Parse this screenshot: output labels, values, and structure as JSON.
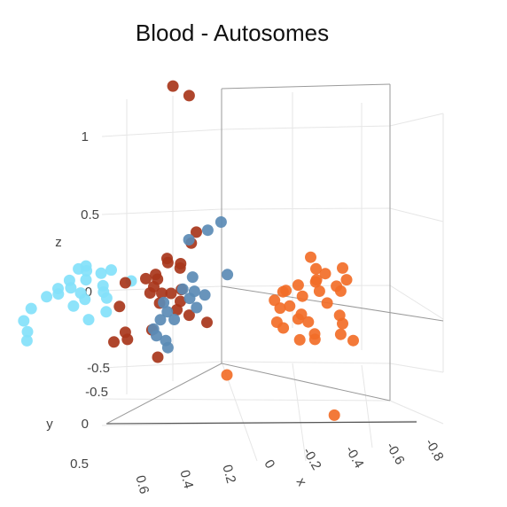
{
  "chart_data": {
    "type": "scatter",
    "title": "Blood - Autosomes",
    "projection": "3d",
    "axes": {
      "x": {
        "label": "x",
        "ticks": [
          "0",
          "-0.2",
          "-0.4",
          "-0.6",
          "-0.8"
        ]
      },
      "y": {
        "label": "y",
        "ticks": [
          "0.6",
          "0.4",
          "0.2"
        ],
        "ticks_side": [
          "0",
          "0.5"
        ]
      },
      "z": {
        "label": "z",
        "ticks": [
          "1",
          "0.5",
          "0",
          "-0.5",
          "-0.5"
        ]
      }
    },
    "grid": true,
    "legend": "none",
    "series": [
      {
        "color": "#83e1fa",
        "points": [
          [
            0.57,
            0.05,
            0.02
          ],
          [
            0.55,
            0.03,
            0.04
          ],
          [
            0.52,
            0.08,
            0.02
          ],
          [
            0.58,
            0.1,
            -0.05
          ],
          [
            0.5,
            0.12,
            -0.03
          ],
          [
            0.47,
            0.06,
            0.01
          ],
          [
            0.6,
            0.15,
            -0.1
          ],
          [
            0.53,
            0.18,
            -0.08
          ],
          [
            0.45,
            0.02,
            0.03
          ],
          [
            0.44,
            0.1,
            -0.06
          ],
          [
            0.62,
            0.2,
            -0.15
          ],
          [
            0.56,
            0.22,
            -0.12
          ],
          [
            0.48,
            0.25,
            -0.18
          ],
          [
            0.64,
            0.28,
            -0.22
          ],
          [
            0.41,
            0.15,
            -0.09
          ],
          [
            0.38,
            0.18,
            -0.12
          ],
          [
            0.35,
            0.05,
            -0.02
          ],
          [
            0.66,
            0.3,
            -0.3
          ],
          [
            0.6,
            0.38,
            -0.35
          ],
          [
            0.58,
            0.42,
            -0.4
          ],
          [
            0.4,
            0.28,
            -0.25
          ],
          [
            0.36,
            0.22,
            -0.2
          ],
          [
            0.5,
            0.16,
            -0.11
          ],
          [
            0.46,
            0.2,
            -0.14
          ]
        ]
      },
      {
        "color": "#a8361b",
        "points": [
          [
            0.08,
            0.1,
            1.22
          ],
          [
            0.12,
            0.15,
            1.28
          ],
          [
            0.05,
            0.1,
            0.35
          ],
          [
            0.06,
            0.12,
            0.28
          ],
          [
            0.2,
            0.05,
            0.15
          ],
          [
            0.18,
            0.08,
            0.13
          ],
          [
            0.16,
            0.02,
            0.12
          ],
          [
            0.14,
            0.06,
            0.1
          ],
          [
            0.22,
            0.1,
            0.05
          ],
          [
            0.25,
            0.12,
            0.02
          ],
          [
            0.2,
            0.15,
            -0.02
          ],
          [
            0.15,
            0.18,
            -0.05
          ],
          [
            0.1,
            0.2,
            -0.04
          ],
          [
            0.28,
            0.22,
            0.0
          ],
          [
            0.12,
            0.25,
            -0.1
          ],
          [
            0.05,
            0.22,
            -0.08
          ],
          [
            0.02,
            0.3,
            -0.12
          ],
          [
            -0.02,
            0.28,
            -0.15
          ],
          [
            0.26,
            0.3,
            -0.14
          ],
          [
            0.18,
            0.4,
            -0.28
          ],
          [
            0.2,
            0.45,
            -0.34
          ],
          [
            0.16,
            0.42,
            -0.32
          ],
          [
            0.08,
            0.38,
            -0.25
          ],
          [
            0.0,
            0.48,
            -0.4
          ],
          [
            -0.05,
            0.2,
            -0.2
          ],
          [
            0.24,
            0.05,
            0.01
          ],
          [
            0.21,
            0.16,
            -0.06
          ],
          [
            0.09,
            0.14,
            -0.02
          ]
        ]
      },
      {
        "color": "#5b8bb5",
        "points": [
          [
            0.03,
            0.05,
            0.36
          ],
          [
            -0.02,
            0.04,
            0.42
          ],
          [
            0.07,
            0.12,
            0.3
          ],
          [
            -0.08,
            0.1,
            0.1
          ],
          [
            0.01,
            0.2,
            0.08
          ],
          [
            0.04,
            0.22,
            0.0
          ],
          [
            -0.03,
            0.18,
            -0.03
          ],
          [
            0.0,
            0.24,
            -0.05
          ],
          [
            -0.04,
            0.26,
            -0.1
          ],
          [
            0.06,
            0.3,
            -0.14
          ],
          [
            0.02,
            0.32,
            -0.18
          ],
          [
            0.1,
            0.28,
            -0.2
          ],
          [
            0.09,
            0.35,
            -0.25
          ],
          [
            0.05,
            0.4,
            -0.28
          ],
          [
            0.0,
            0.42,
            -0.3
          ],
          [
            -0.02,
            0.44,
            -0.34
          ],
          [
            0.12,
            0.22,
            -0.1
          ],
          [
            0.03,
            0.15,
            -0.02
          ]
        ]
      },
      {
        "color": "#f26e28",
        "points": [
          [
            -0.4,
            0.05,
            0.26
          ],
          [
            -0.45,
            0.1,
            0.2
          ],
          [
            -0.5,
            0.12,
            0.18
          ],
          [
            -0.55,
            0.08,
            0.22
          ],
          [
            -0.48,
            0.15,
            0.14
          ],
          [
            -0.42,
            0.18,
            0.1
          ],
          [
            -0.6,
            0.14,
            0.16
          ],
          [
            -0.52,
            0.2,
            0.08
          ],
          [
            -0.46,
            0.22,
            0.04
          ],
          [
            -0.38,
            0.2,
            0.06
          ],
          [
            -0.62,
            0.22,
            0.1
          ],
          [
            -0.58,
            0.25,
            0.02
          ],
          [
            -0.44,
            0.28,
            -0.02
          ],
          [
            -0.36,
            0.25,
            0.0
          ],
          [
            -0.5,
            0.3,
            -0.06
          ],
          [
            -0.66,
            0.3,
            -0.04
          ],
          [
            -0.54,
            0.32,
            -0.1
          ],
          [
            -0.42,
            0.34,
            -0.12
          ],
          [
            -0.7,
            0.35,
            -0.08
          ],
          [
            -0.6,
            0.38,
            -0.16
          ],
          [
            -0.48,
            0.4,
            -0.14
          ],
          [
            -0.56,
            0.42,
            -0.2
          ],
          [
            -0.64,
            0.45,
            -0.18
          ],
          [
            -0.72,
            0.4,
            -0.14
          ],
          [
            -0.8,
            0.45,
            -0.16
          ],
          [
            -0.3,
            0.5,
            -0.46
          ],
          [
            -0.86,
            0.7,
            -0.6
          ],
          [
            -0.34,
            0.15,
            0.04
          ],
          [
            -0.4,
            0.28,
            -0.04
          ],
          [
            -0.52,
            0.36,
            -0.08
          ],
          [
            -0.46,
            0.12,
            0.12
          ],
          [
            -0.58,
            0.18,
            0.12
          ]
        ]
      }
    ]
  }
}
